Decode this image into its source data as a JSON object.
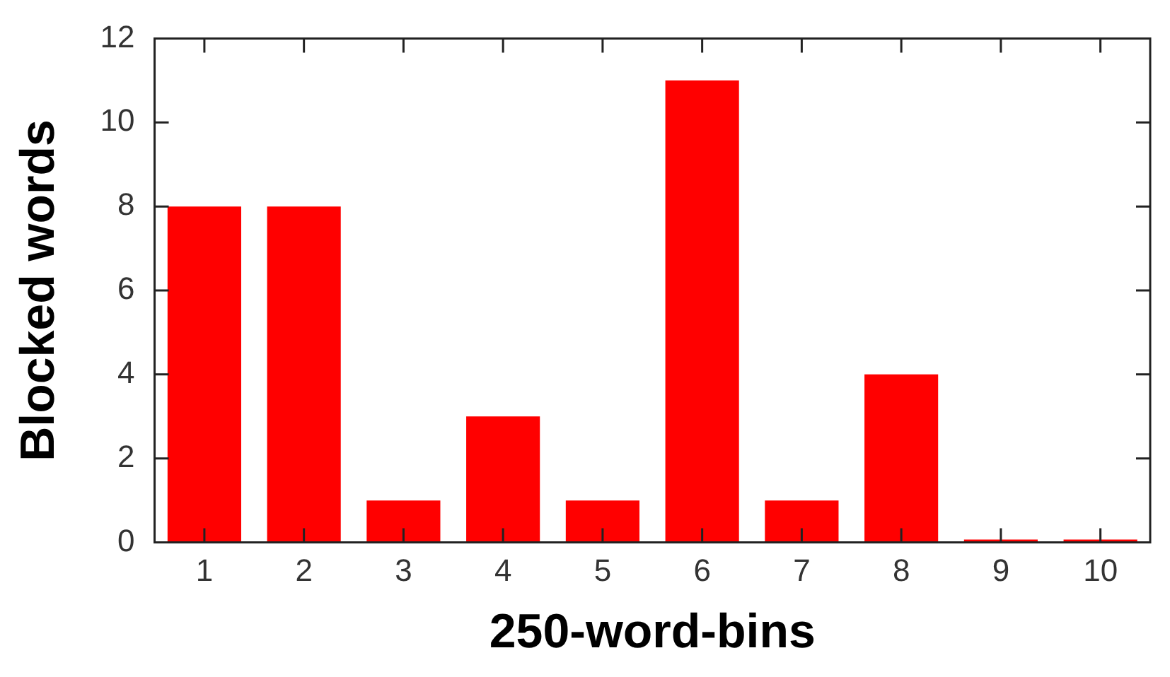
{
  "chart_data": {
    "type": "bar",
    "xlabel": "250-word-bins",
    "ylabel": "Blocked words",
    "categories": [
      "1",
      "2",
      "3",
      "4",
      "5",
      "6",
      "7",
      "8",
      "9",
      "10"
    ],
    "values": [
      8,
      8,
      1,
      3,
      1,
      11,
      1,
      4,
      0,
      0
    ],
    "color": "#ff0000",
    "ylim": [
      0,
      12
    ],
    "yticks": [
      0,
      2,
      4,
      6,
      8,
      10,
      12
    ],
    "grid": false
  }
}
